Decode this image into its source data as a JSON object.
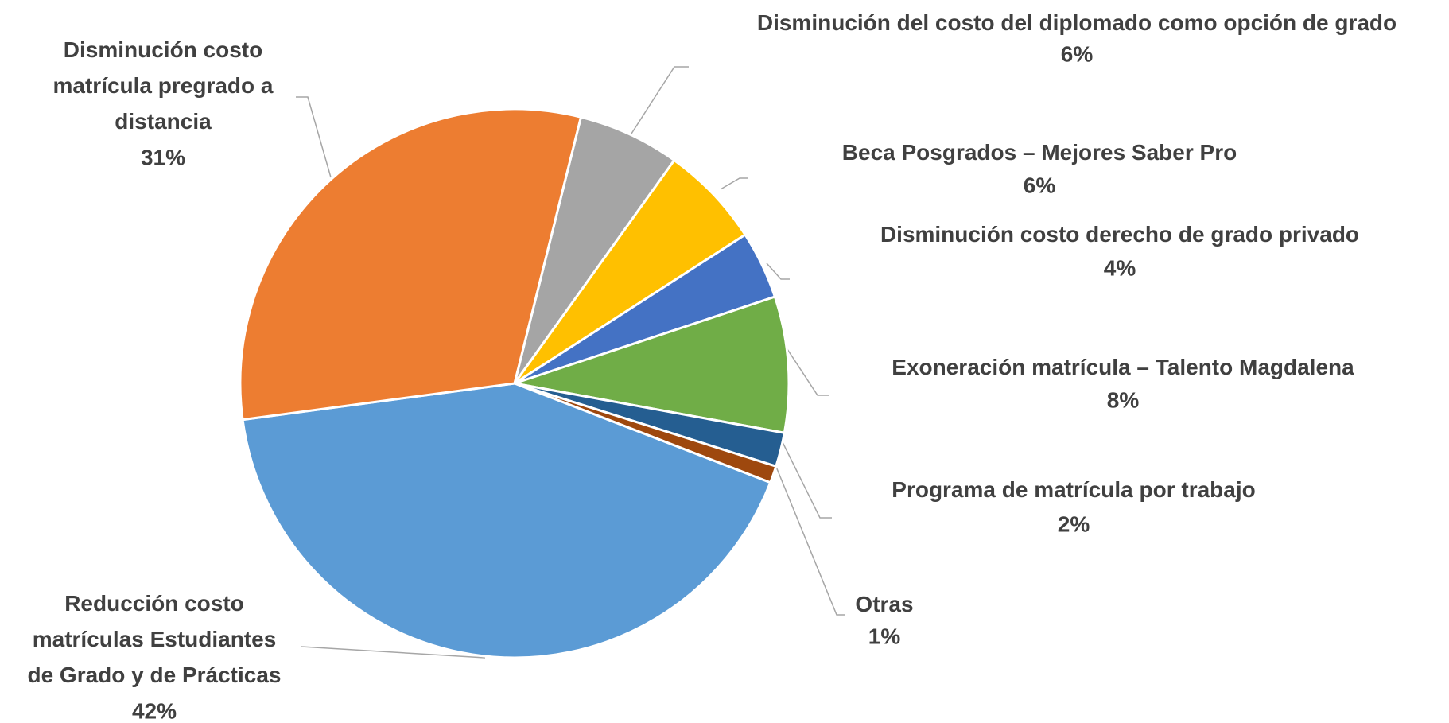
{
  "chart_data": {
    "type": "pie",
    "categories": [
      "Disminución del costo del diplomado como opción de grado",
      "Beca Posgrados – Mejores Saber Pro",
      "Disminución costo derecho de grado privado",
      "Exoneración matrícula – Talento Magdalena",
      "Programa de matrícula por trabajo",
      "Otras",
      "Reducción costo matrículas Estudiantes de Grado y de Prácticas",
      "Disminución costo matrícula pregrado a distancia"
    ],
    "values": [
      6,
      6,
      4,
      8,
      2,
      1,
      42,
      31
    ],
    "value_labels": [
      "6%",
      "6%",
      "4%",
      "8%",
      "2%",
      "1%",
      "42%",
      "31%"
    ],
    "colors": [
      "#a5a5a5",
      "#ffc000",
      "#4472c4",
      "#70ad47",
      "#255e91",
      "#9e480e",
      "#5b9bd5",
      "#ed7d31"
    ]
  }
}
